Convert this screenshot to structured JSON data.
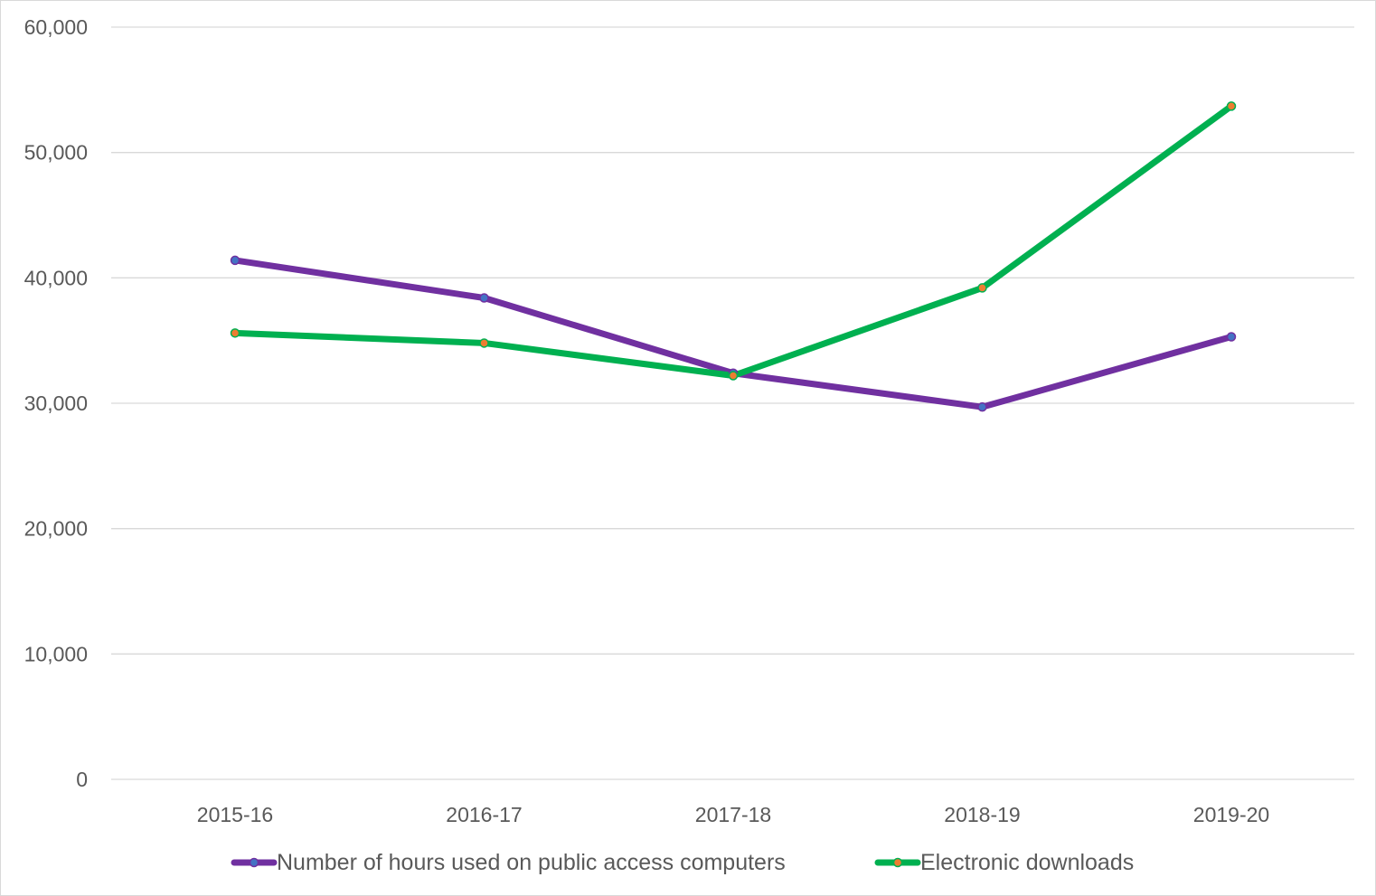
{
  "chart_data": {
    "type": "line",
    "title": "",
    "xlabel": "",
    "ylabel": "",
    "categories": [
      "2015-16",
      "2016-17",
      "2017-18",
      "2018-19",
      "2019-20"
    ],
    "ylim": [
      0,
      60000
    ],
    "yticks": [
      0,
      10000,
      20000,
      30000,
      40000,
      50000,
      60000
    ],
    "ytick_labels": [
      "0",
      "10,000",
      "20,000",
      "30,000",
      "40,000",
      "50,000",
      "60,000"
    ],
    "grid": "horizontal",
    "legend_position": "bottom",
    "series": [
      {
        "name": "Number of hours used on public access computers",
        "values": [
          41400,
          38400,
          32400,
          29700,
          35300
        ],
        "color": "#7030a0",
        "marker_fill": "#4472c4"
      },
      {
        "name": "Electronic downloads",
        "values": [
          35600,
          34800,
          32200,
          39200,
          53700
        ],
        "color": "#00b050",
        "marker_fill": "#ed7d31"
      }
    ]
  }
}
